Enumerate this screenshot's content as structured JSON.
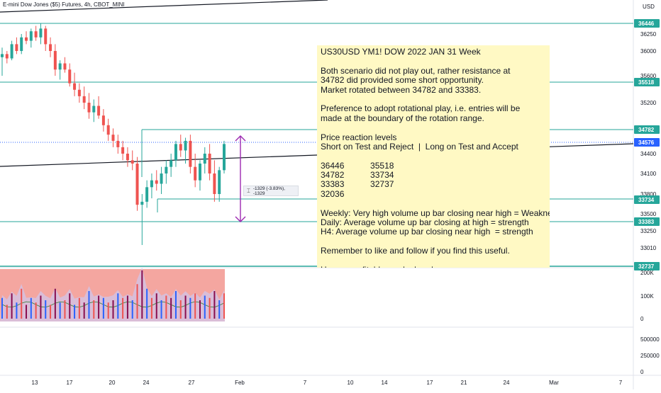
{
  "header": {
    "title": "E-mini Dow Jones ($5) Futures, 4h, CBOT_MINI",
    "currency": "USD"
  },
  "note": {
    "lines": [
      "US30USD YM1! DOW 2022 JAN 31 Week",
      "",
      "Both scenario did not play out, rather resistance at",
      "34782 did provided some short opportunity.",
      "Market rotated between 34782 and 33383.",
      "",
      "Preference to adopt rotational play, i.e. entries will be",
      "made at the boundary of the rotation range.",
      "",
      "Price reaction levels",
      "Short on Test and Reject  |  Long on Test and Accept",
      "",
      "36446           35518",
      "34782           33734",
      "33383           32737",
      "32036",
      "",
      "Weekly: Very high volume up bar closing near high = Weakness",
      "Daily: Average volume up bar closing at high = strength",
      "H4: Average volume up bar closing near high  = strength",
      "",
      "Remember to like and follow if you find this useful.",
      "",
      "Have a profitable week ahead."
    ]
  },
  "measure": {
    "label": "-1329 (-3.83%), -1329"
  },
  "price_axis": {
    "ticks": [
      "36250",
      "36000",
      "35600",
      "35200",
      "34400",
      "34100",
      "33800",
      "33500",
      "33250",
      "33010"
    ],
    "level_labels": [
      "36446",
      "35518",
      "34782",
      "34576",
      "33734",
      "33383",
      "32737"
    ],
    "level_color": "#26a69a",
    "current_color": "#2962ff"
  },
  "volume_axis": {
    "ticks": [
      "200K",
      "100K",
      "0"
    ]
  },
  "lower_axis": {
    "ticks": [
      "500000",
      "250000",
      "0"
    ]
  },
  "time_axis": {
    "ticks": [
      "13",
      "17",
      "20",
      "24",
      "27",
      "Feb",
      "7",
      "10",
      "14",
      "17",
      "21",
      "24",
      "Mar",
      "7"
    ]
  },
  "chart_data": {
    "type": "candlestick",
    "title": "E-mini Dow Jones ($5) Futures, 4h, CBOT_MINI",
    "timeframe": "4h",
    "symbol": "YM1! (CBOT_MINI)",
    "ylim": [
      33000,
      36500
    ],
    "levels": [
      36446,
      35518,
      34782,
      33734,
      33383,
      32737
    ],
    "current_price": 34576,
    "range": {
      "high": 34782,
      "low": 33383
    },
    "measurement": {
      "change": -1329,
      "percent": -3.83
    },
    "candles": [
      {
        "o": 35900,
        "h": 36050,
        "l": 35600,
        "c": 35950
      },
      {
        "o": 35950,
        "h": 36000,
        "l": 35800,
        "c": 35880
      },
      {
        "o": 35880,
        "h": 36150,
        "l": 35850,
        "c": 36100
      },
      {
        "o": 36100,
        "h": 36200,
        "l": 35950,
        "c": 36000
      },
      {
        "o": 36000,
        "h": 36250,
        "l": 35950,
        "c": 36200
      },
      {
        "o": 36200,
        "h": 36300,
        "l": 36100,
        "c": 36150
      },
      {
        "o": 36150,
        "h": 36350,
        "l": 36050,
        "c": 36300
      },
      {
        "o": 36300,
        "h": 36400,
        "l": 36150,
        "c": 36200
      },
      {
        "o": 36200,
        "h": 36450,
        "l": 36100,
        "c": 36350
      },
      {
        "o": 36350,
        "h": 36400,
        "l": 36000,
        "c": 36100
      },
      {
        "o": 36100,
        "h": 36200,
        "l": 35900,
        "c": 36000
      },
      {
        "o": 36000,
        "h": 36100,
        "l": 35600,
        "c": 35700
      },
      {
        "o": 35700,
        "h": 35850,
        "l": 35550,
        "c": 35800
      },
      {
        "o": 35800,
        "h": 35900,
        "l": 35650,
        "c": 35700
      },
      {
        "o": 35700,
        "h": 35800,
        "l": 35450,
        "c": 35500
      },
      {
        "o": 35500,
        "h": 35650,
        "l": 35300,
        "c": 35400
      },
      {
        "o": 35400,
        "h": 35500,
        "l": 35200,
        "c": 35300
      },
      {
        "o": 35300,
        "h": 35450,
        "l": 35100,
        "c": 35200
      },
      {
        "o": 35200,
        "h": 35350,
        "l": 34950,
        "c": 35050
      },
      {
        "o": 35050,
        "h": 35250,
        "l": 34900,
        "c": 35150
      },
      {
        "o": 35150,
        "h": 35300,
        "l": 34950,
        "c": 35000
      },
      {
        "o": 35000,
        "h": 35100,
        "l": 34750,
        "c": 34850
      },
      {
        "o": 34850,
        "h": 34950,
        "l": 34600,
        "c": 34700
      },
      {
        "o": 34700,
        "h": 34800,
        "l": 34500,
        "c": 34600
      },
      {
        "o": 34600,
        "h": 34700,
        "l": 34400,
        "c": 34500
      },
      {
        "o": 34500,
        "h": 34600,
        "l": 34300,
        "c": 34400
      },
      {
        "o": 34400,
        "h": 34500,
        "l": 34200,
        "c": 34300
      },
      {
        "o": 34300,
        "h": 34450,
        "l": 34150,
        "c": 34250
      },
      {
        "o": 34250,
        "h": 34350,
        "l": 33550,
        "c": 33650
      },
      {
        "o": 33650,
        "h": 33800,
        "l": 33050,
        "c": 33700
      },
      {
        "o": 33700,
        "h": 34000,
        "l": 33600,
        "c": 33900
      },
      {
        "o": 33900,
        "h": 34100,
        "l": 33750,
        "c": 34000
      },
      {
        "o": 34000,
        "h": 34150,
        "l": 33850,
        "c": 33950
      },
      {
        "o": 33950,
        "h": 34200,
        "l": 33800,
        "c": 34100
      },
      {
        "o": 34100,
        "h": 34300,
        "l": 33950,
        "c": 34200
      },
      {
        "o": 34200,
        "h": 34400,
        "l": 34050,
        "c": 34300
      },
      {
        "o": 34300,
        "h": 34600,
        "l": 34200,
        "c": 34550
      },
      {
        "o": 34550,
        "h": 34700,
        "l": 34350,
        "c": 34450
      },
      {
        "o": 34450,
        "h": 34650,
        "l": 34250,
        "c": 34600
      },
      {
        "o": 34600,
        "h": 34700,
        "l": 34100,
        "c": 34200
      },
      {
        "o": 34200,
        "h": 34400,
        "l": 33900,
        "c": 34000
      },
      {
        "o": 34000,
        "h": 34300,
        "l": 33850,
        "c": 34250
      },
      {
        "o": 34250,
        "h": 34500,
        "l": 34100,
        "c": 34400
      },
      {
        "o": 34400,
        "h": 34550,
        "l": 34000,
        "c": 34100
      },
      {
        "o": 34100,
        "h": 34300,
        "l": 33700,
        "c": 33800
      },
      {
        "o": 33800,
        "h": 34200,
        "l": 33700,
        "c": 34150
      },
      {
        "o": 34150,
        "h": 34600,
        "l": 34100,
        "c": 34550
      }
    ],
    "volume": {
      "ylim": [
        0,
        200000
      ],
      "values": [
        90000,
        60000,
        110000,
        70000,
        130000,
        60000,
        90000,
        70000,
        100000,
        80000,
        60000,
        130000,
        70000,
        80000,
        110000,
        60000,
        90000,
        70000,
        120000,
        80000,
        100000,
        90000,
        70000,
        80000,
        110000,
        90000,
        100000,
        80000,
        150000,
        210000,
        130000,
        90000,
        110000,
        80000,
        100000,
        90000,
        120000,
        80000,
        100000,
        90000,
        110000,
        80000,
        100000,
        90000,
        120000,
        80000,
        110000
      ]
    }
  }
}
